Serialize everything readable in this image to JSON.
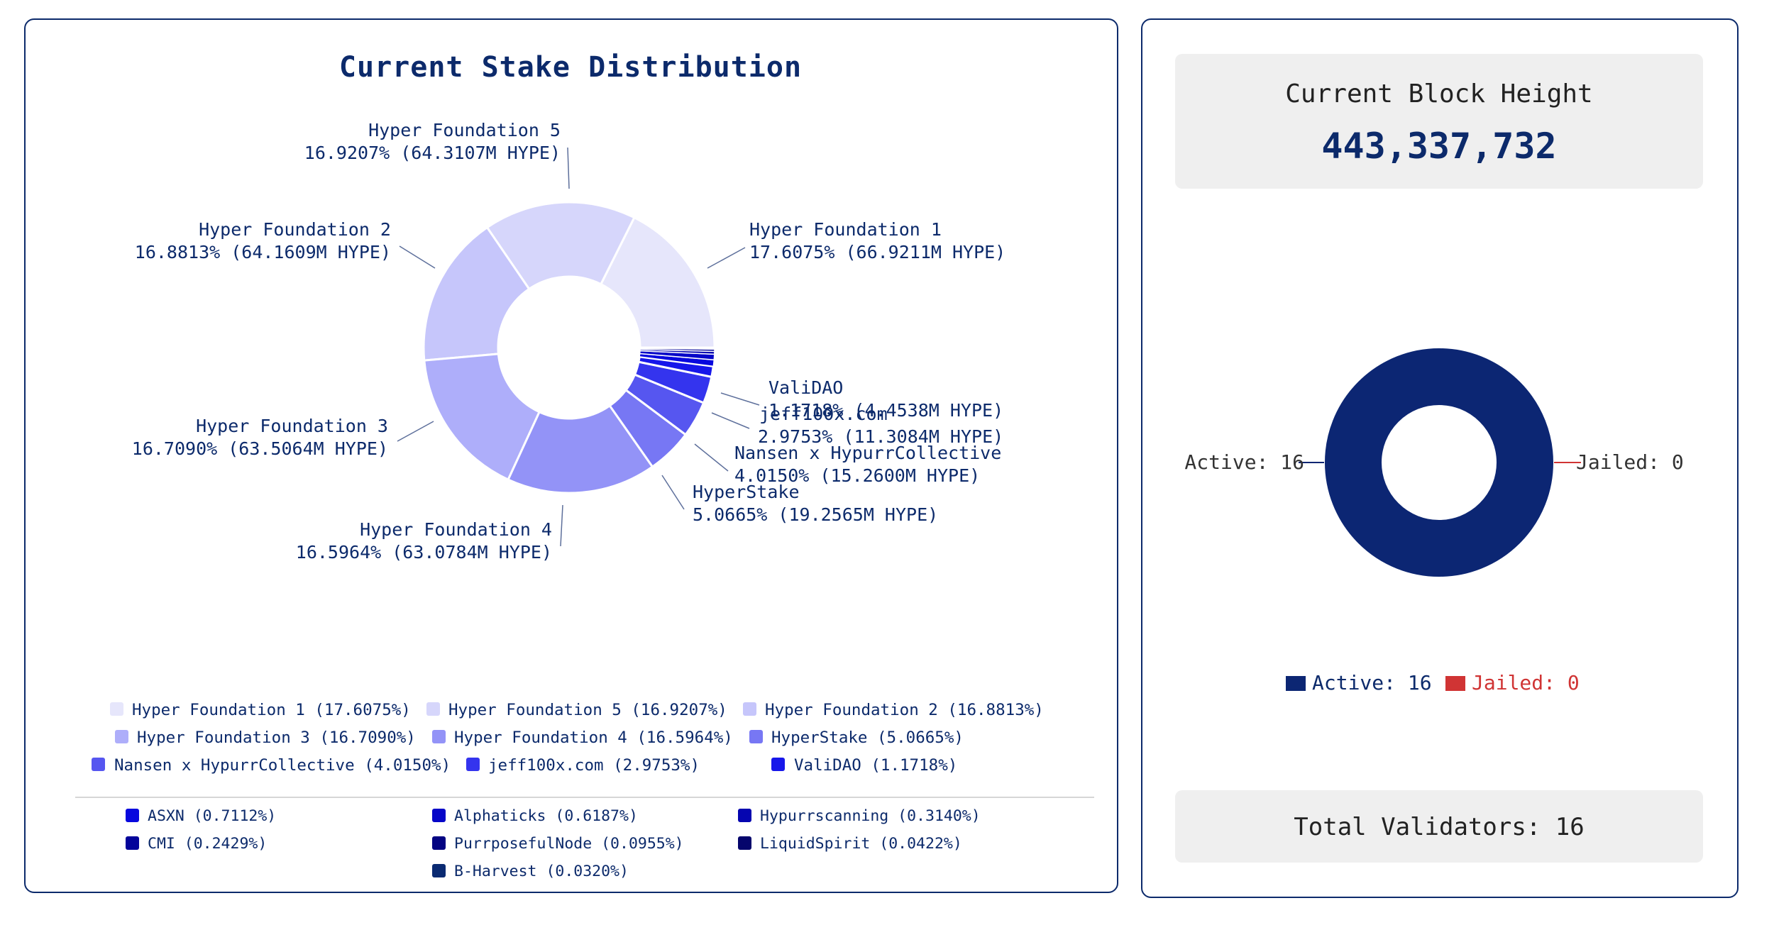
{
  "chart_data": [
    {
      "type": "pie",
      "subtype": "donut",
      "title": "Current Stake Distribution",
      "unit": "M HYPE",
      "slices": [
        {
          "name": "Hyper Foundation 1",
          "percent": 17.6075,
          "amount": 66.9211,
          "color": "#e6e6fb"
        },
        {
          "name": "Hyper Foundation 5",
          "percent": 16.9207,
          "amount": 64.3107,
          "color": "#d6d6fb"
        },
        {
          "name": "Hyper Foundation 2",
          "percent": 16.8813,
          "amount": 64.1609,
          "color": "#c6c6fb"
        },
        {
          "name": "Hyper Foundation 3",
          "percent": 16.709,
          "amount": 63.5064,
          "color": "#aeaefa"
        },
        {
          "name": "Hyper Foundation 4",
          "percent": 16.5964,
          "amount": 63.0784,
          "color": "#9393f7"
        },
        {
          "name": "HyperStake",
          "percent": 5.0665,
          "amount": 19.2565,
          "color": "#7777f4"
        },
        {
          "name": "Nansen x HypurrCollective",
          "percent": 4.015,
          "amount": 15.26,
          "color": "#5656f0"
        },
        {
          "name": "jeff100x.com",
          "percent": 2.9753,
          "amount": 11.3084,
          "color": "#3434ee"
        },
        {
          "name": "ValiDAO",
          "percent": 1.1718,
          "amount": 4.4538,
          "color": "#1717ea"
        },
        {
          "name": "ASXN",
          "percent": 0.7112,
          "color": "#0808de"
        },
        {
          "name": "Alphaticks",
          "percent": 0.6187,
          "color": "#0606c8"
        },
        {
          "name": "Hypurrscanning",
          "percent": 0.314,
          "color": "#0505b0"
        },
        {
          "name": "CMI",
          "percent": 0.2429,
          "color": "#04049a"
        },
        {
          "name": "PurrposefulNode",
          "percent": 0.0955,
          "color": "#040482"
        },
        {
          "name": "LiquidSpirit",
          "percent": 0.0422,
          "color": "#05056c"
        },
        {
          "name": "B-Harvest",
          "percent": 0.032,
          "color": "#0a2a72"
        }
      ],
      "slice_labels": [
        {
          "line1": "Hyper Foundation 5",
          "line2": "16.9207% (64.3107M HYPE)"
        },
        {
          "line1": "Hyper Foundation 1",
          "line2": "17.6075% (66.9211M HYPE)"
        },
        {
          "line1": "Hyper Foundation 2",
          "line2": "16.8813% (64.1609M HYPE)"
        },
        {
          "line1": "Hyper Foundation 3",
          "line2": "16.7090% (63.5064M HYPE)"
        },
        {
          "line1": "Hyper Foundation 4",
          "line2": "16.5964% (63.0784M HYPE)"
        },
        {
          "line1": "ValiDAO",
          "line2": "1.1718% (4.4538M HYPE)"
        },
        {
          "line1": "jeff100x.com",
          "line2": "2.9753% (11.3084M HYPE)"
        },
        {
          "line1": "Nansen x HypurrCollective",
          "line2": "4.0150% (15.2600M HYPE)"
        },
        {
          "line1": "HyperStake",
          "line2": "5.0665% (19.2565M HYPE)"
        }
      ],
      "legend_primary": [
        "Hyper Foundation 1 (17.6075%)",
        "Hyper Foundation 5 (16.9207%)",
        "Hyper Foundation 2 (16.8813%)",
        "Hyper Foundation 3 (16.7090%)",
        "Hyper Foundation 4 (16.5964%)",
        "HyperStake (5.0665%)",
        "Nansen x HypurrCollective (4.0150%)",
        "jeff100x.com (2.9753%)",
        "ValiDAO (1.1718%)"
      ],
      "legend_secondary": [
        "ASXN (0.7112%)",
        "Alphaticks (0.6187%)",
        "Hypurrscanning (0.3140%)",
        "CMI (0.2429%)",
        "PurrposefulNode (0.0955%)",
        "LiquidSpirit (0.0422%)",
        "B-Harvest (0.0320%)"
      ]
    },
    {
      "type": "pie",
      "subtype": "donut",
      "title": "",
      "slices": [
        {
          "name": "Active",
          "value": 16,
          "color": "#0c2673"
        },
        {
          "name": "Jailed",
          "value": 0,
          "color": "#d03434"
        }
      ],
      "labels": {
        "active": "Active: 16",
        "jailed": "Jailed: 0"
      },
      "legend": {
        "active": "Active: 16",
        "jailed": "Jailed: 0"
      }
    }
  ],
  "block_height": {
    "label": "Current Block Height",
    "value": "443,337,732"
  },
  "total_validators": {
    "label": "Total Validators: 16"
  }
}
